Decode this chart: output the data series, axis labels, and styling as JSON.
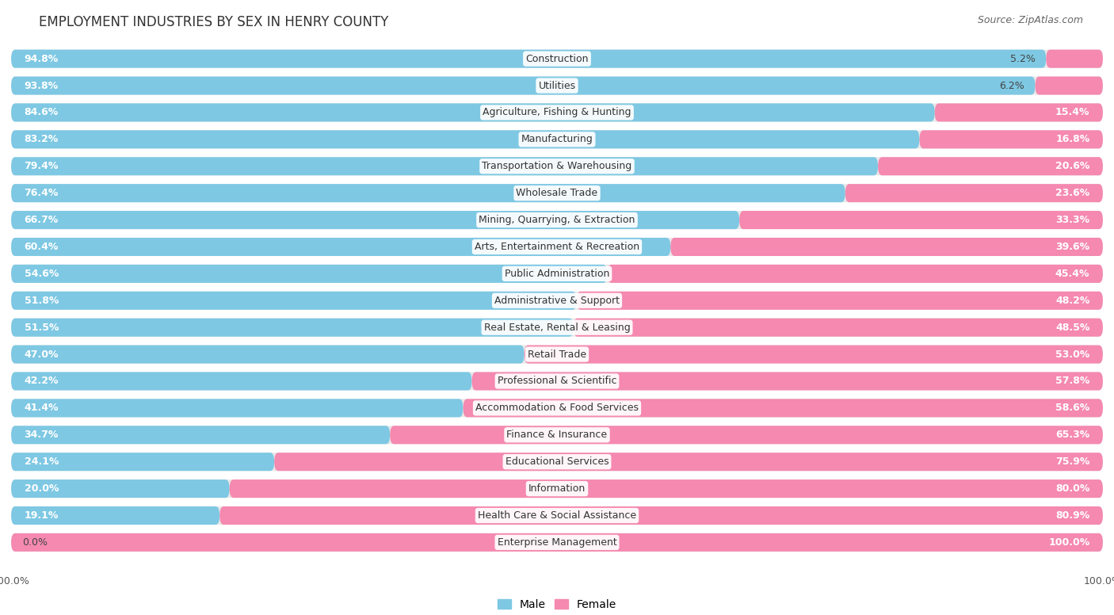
{
  "title": "EMPLOYMENT INDUSTRIES BY SEX IN HENRY COUNTY",
  "source": "Source: ZipAtlas.com",
  "categories": [
    "Construction",
    "Utilities",
    "Agriculture, Fishing & Hunting",
    "Manufacturing",
    "Transportation & Warehousing",
    "Wholesale Trade",
    "Mining, Quarrying, & Extraction",
    "Arts, Entertainment & Recreation",
    "Public Administration",
    "Administrative & Support",
    "Real Estate, Rental & Leasing",
    "Retail Trade",
    "Professional & Scientific",
    "Accommodation & Food Services",
    "Finance & Insurance",
    "Educational Services",
    "Information",
    "Health Care & Social Assistance",
    "Enterprise Management"
  ],
  "male_pct": [
    94.8,
    93.8,
    84.6,
    83.2,
    79.4,
    76.4,
    66.7,
    60.4,
    54.6,
    51.8,
    51.5,
    47.0,
    42.2,
    41.4,
    34.7,
    24.1,
    20.0,
    19.1,
    0.0
  ],
  "female_pct": [
    5.2,
    6.2,
    15.4,
    16.8,
    20.6,
    23.6,
    33.3,
    39.6,
    45.4,
    48.2,
    48.5,
    53.0,
    57.8,
    58.6,
    65.3,
    75.9,
    80.0,
    80.9,
    100.0
  ],
  "male_color": "#7EC8E3",
  "female_color": "#F589B0",
  "bar_bg_color": "#E8E8E8",
  "row_bg_color": "#F0F0F0",
  "title_fontsize": 12,
  "label_fontsize": 9,
  "source_fontsize": 9,
  "cat_fontsize": 9
}
